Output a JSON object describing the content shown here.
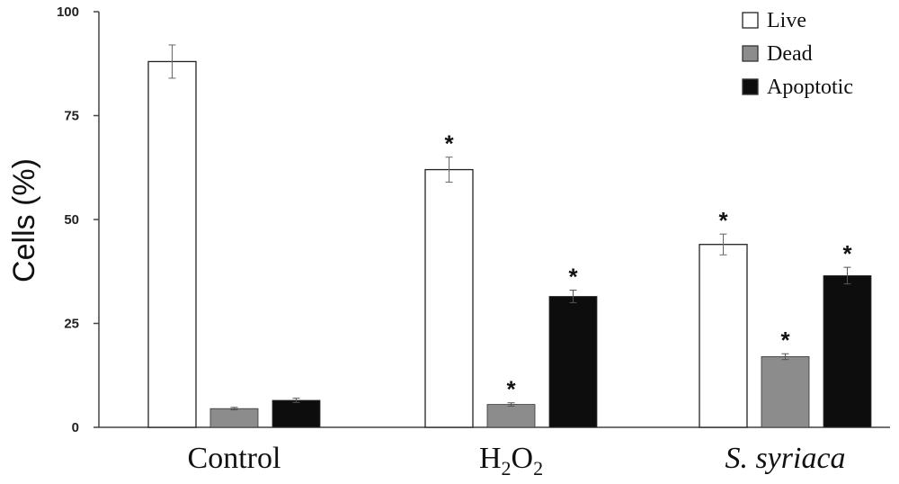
{
  "chart_data": {
    "type": "bar",
    "ylabel": "Cells (%)",
    "ylim": [
      0,
      100
    ],
    "yticks": [
      "0",
      "25",
      "50",
      "75",
      "100"
    ],
    "categories": [
      "Control",
      "H2O2",
      "S. syriaca"
    ],
    "category_labels": [
      {
        "parts": [
          {
            "text": "Control",
            "sub": false
          }
        ],
        "italic": false
      },
      {
        "parts": [
          {
            "text": "H",
            "sub": false
          },
          {
            "text": "2",
            "sub": true
          },
          {
            "text": "O",
            "sub": false
          },
          {
            "text": "2",
            "sub": true
          }
        ],
        "italic": false
      },
      {
        "parts": [
          {
            "text": "S. syriaca",
            "sub": false
          }
        ],
        "italic": true
      }
    ],
    "series": [
      {
        "name": "Live",
        "color": "#ffffff",
        "values": [
          88,
          62,
          44
        ],
        "errors": [
          4,
          3,
          2.5
        ],
        "significant": [
          false,
          true,
          true
        ]
      },
      {
        "name": "Dead",
        "color": "#8c8c8c",
        "values": [
          4.5,
          5.5,
          17
        ],
        "errors": [
          0.3,
          0.4,
          0.7
        ],
        "significant": [
          false,
          true,
          true
        ]
      },
      {
        "name": "Apoptotic",
        "color": "#0d0d0d",
        "values": [
          6.5,
          31.5,
          36.5
        ],
        "errors": [
          0.5,
          1.5,
          2
        ],
        "significant": [
          false,
          true,
          true
        ]
      }
    ],
    "significance_marker": "*",
    "legend_position": "top-right",
    "grid": false
  }
}
